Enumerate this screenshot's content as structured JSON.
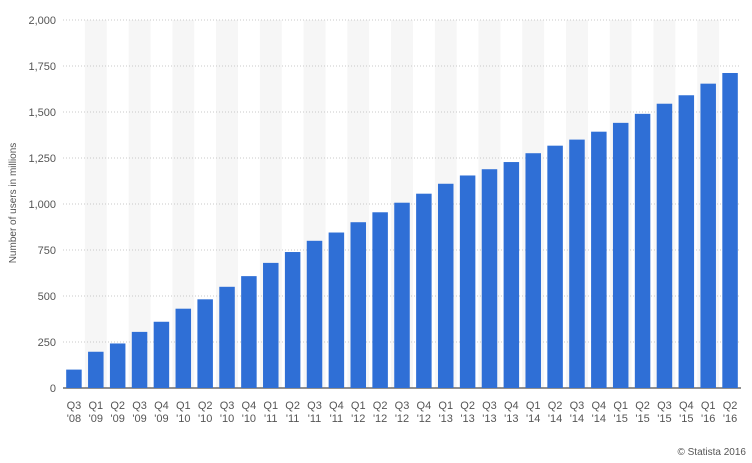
{
  "chart_data": {
    "type": "bar",
    "ylabel": "Number of users in millions",
    "xlabel": "",
    "ylim": [
      0,
      2000
    ],
    "yticks": [
      0,
      250,
      500,
      750,
      1000,
      1250,
      1500,
      1750,
      2000
    ],
    "ytick_labels": [
      "0",
      "250",
      "500",
      "750",
      "1,000",
      "1,250",
      "1,500",
      "1,750",
      "2,000"
    ],
    "grid": true,
    "bar_color": "#2f6fd6",
    "categories": [
      [
        "Q3",
        "'08"
      ],
      [
        "Q1",
        "'09"
      ],
      [
        "Q2",
        "'09"
      ],
      [
        "Q3",
        "'09"
      ],
      [
        "Q4",
        "'09"
      ],
      [
        "Q1",
        "'10"
      ],
      [
        "Q2",
        "'10"
      ],
      [
        "Q3",
        "'10"
      ],
      [
        "Q4",
        "'10"
      ],
      [
        "Q1",
        "'11"
      ],
      [
        "Q2",
        "'11"
      ],
      [
        "Q3",
        "'11"
      ],
      [
        "Q4",
        "'11"
      ],
      [
        "Q1",
        "'12"
      ],
      [
        "Q2",
        "'12"
      ],
      [
        "Q3",
        "'12"
      ],
      [
        "Q4",
        "'12"
      ],
      [
        "Q1",
        "'13"
      ],
      [
        "Q2",
        "'13"
      ],
      [
        "Q3",
        "'13"
      ],
      [
        "Q4",
        "'13"
      ],
      [
        "Q1",
        "'14"
      ],
      [
        "Q2",
        "'14"
      ],
      [
        "Q3",
        "'14"
      ],
      [
        "Q4",
        "'14"
      ],
      [
        "Q1",
        "'15"
      ],
      [
        "Q2",
        "'15"
      ],
      [
        "Q3",
        "'15"
      ],
      [
        "Q4",
        "'15"
      ],
      [
        "Q1",
        "'16"
      ],
      [
        "Q2",
        "'16"
      ]
    ],
    "values": [
      100,
      197,
      242,
      305,
      360,
      431,
      482,
      550,
      608,
      680,
      739,
      800,
      845,
      901,
      955,
      1007,
      1056,
      1110,
      1155,
      1189,
      1228,
      1276,
      1317,
      1350,
      1393,
      1441,
      1490,
      1545,
      1591,
      1654,
      1712
    ]
  },
  "credit": "© Statista 2016"
}
